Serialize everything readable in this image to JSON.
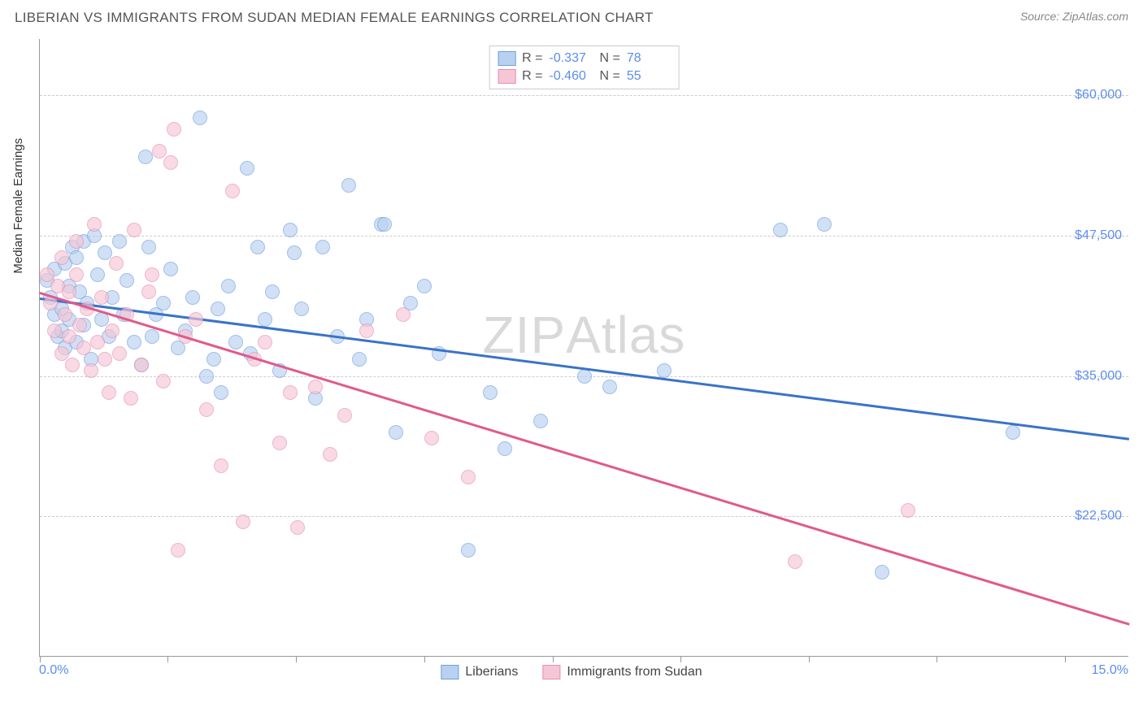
{
  "title": "LIBERIAN VS IMMIGRANTS FROM SUDAN MEDIAN FEMALE EARNINGS CORRELATION CHART",
  "source": "Source: ZipAtlas.com",
  "watermark_a": "ZIP",
  "watermark_b": "Atlas",
  "y_axis_title": "Median Female Earnings",
  "chart": {
    "type": "scatter",
    "xlim": [
      0,
      15
    ],
    "ylim": [
      10000,
      65000
    ],
    "x_left_label": "0.0%",
    "x_right_label": "15.0%",
    "x_ticks": [
      0,
      1.76,
      3.53,
      5.29,
      7.06,
      8.82,
      10.59,
      12.35,
      14.12
    ],
    "y_ticks": [
      {
        "v": 22500,
        "label": "$22,500"
      },
      {
        "v": 35000,
        "label": "$35,000"
      },
      {
        "v": 47500,
        "label": "$47,500"
      },
      {
        "v": 60000,
        "label": "$60,000"
      }
    ],
    "grid_color": "#cccccc",
    "background_color": "#ffffff",
    "series": [
      {
        "name": "Liberians",
        "fill": "#b9d1f0",
        "stroke": "#6b9fe0",
        "line_color": "#3973c9",
        "R": "-0.337",
        "N": "78",
        "trend": {
          "x1": 0,
          "y1": 42000,
          "x2": 15,
          "y2": 29500
        },
        "points": [
          [
            0.1,
            43500
          ],
          [
            0.15,
            42000
          ],
          [
            0.2,
            40500
          ],
          [
            0.2,
            44500
          ],
          [
            0.25,
            38500
          ],
          [
            0.3,
            41000
          ],
          [
            0.3,
            39000
          ],
          [
            0.35,
            45000
          ],
          [
            0.35,
            37500
          ],
          [
            0.4,
            43000
          ],
          [
            0.4,
            40000
          ],
          [
            0.45,
            46500
          ],
          [
            0.5,
            38000
          ],
          [
            0.5,
            45500
          ],
          [
            0.55,
            42500
          ],
          [
            0.6,
            47000
          ],
          [
            0.6,
            39500
          ],
          [
            0.65,
            41500
          ],
          [
            0.7,
            36500
          ],
          [
            0.75,
            47500
          ],
          [
            0.8,
            44000
          ],
          [
            0.85,
            40000
          ],
          [
            0.9,
            46000
          ],
          [
            0.95,
            38500
          ],
          [
            1.0,
            42000
          ],
          [
            1.1,
            47000
          ],
          [
            1.15,
            40500
          ],
          [
            1.2,
            43500
          ],
          [
            1.3,
            38000
          ],
          [
            1.4,
            36000
          ],
          [
            1.45,
            54500
          ],
          [
            1.5,
            46500
          ],
          [
            1.55,
            38500
          ],
          [
            1.6,
            40500
          ],
          [
            1.7,
            41500
          ],
          [
            1.8,
            44500
          ],
          [
            1.9,
            37500
          ],
          [
            2.0,
            39000
          ],
          [
            2.1,
            42000
          ],
          [
            2.2,
            58000
          ],
          [
            2.3,
            35000
          ],
          [
            2.4,
            36500
          ],
          [
            2.45,
            41000
          ],
          [
            2.5,
            33500
          ],
          [
            2.6,
            43000
          ],
          [
            2.7,
            38000
          ],
          [
            2.85,
            53500
          ],
          [
            2.9,
            37000
          ],
          [
            3.0,
            46500
          ],
          [
            3.1,
            40000
          ],
          [
            3.2,
            42500
          ],
          [
            3.3,
            35500
          ],
          [
            3.45,
            48000
          ],
          [
            3.5,
            46000
          ],
          [
            3.6,
            41000
          ],
          [
            3.8,
            33000
          ],
          [
            3.9,
            46500
          ],
          [
            4.1,
            38500
          ],
          [
            4.25,
            52000
          ],
          [
            4.4,
            36500
          ],
          [
            4.5,
            40000
          ],
          [
            4.7,
            48500
          ],
          [
            4.75,
            48500
          ],
          [
            4.9,
            30000
          ],
          [
            5.1,
            41500
          ],
          [
            5.3,
            43000
          ],
          [
            5.5,
            37000
          ],
          [
            5.9,
            19500
          ],
          [
            6.2,
            33500
          ],
          [
            6.4,
            28500
          ],
          [
            6.9,
            31000
          ],
          [
            7.5,
            35000
          ],
          [
            7.85,
            34000
          ],
          [
            8.6,
            35500
          ],
          [
            10.2,
            48000
          ],
          [
            10.8,
            48500
          ],
          [
            11.6,
            17500
          ],
          [
            13.4,
            30000
          ]
        ]
      },
      {
        "name": "Immigrants from Sudan",
        "fill": "#f5c6d6",
        "stroke": "#e88fb0",
        "line_color": "#e05a8a",
        "R": "-0.460",
        "N": "55",
        "trend": {
          "x1": 0,
          "y1": 42500,
          "x2": 15,
          "y2": 13000
        },
        "points": [
          [
            0.1,
            44000
          ],
          [
            0.15,
            41500
          ],
          [
            0.2,
            39000
          ],
          [
            0.25,
            43000
          ],
          [
            0.3,
            37000
          ],
          [
            0.3,
            45500
          ],
          [
            0.35,
            40500
          ],
          [
            0.4,
            38500
          ],
          [
            0.4,
            42500
          ],
          [
            0.45,
            36000
          ],
          [
            0.5,
            44000
          ],
          [
            0.5,
            47000
          ],
          [
            0.55,
            39500
          ],
          [
            0.6,
            37500
          ],
          [
            0.65,
            41000
          ],
          [
            0.7,
            35500
          ],
          [
            0.75,
            48500
          ],
          [
            0.8,
            38000
          ],
          [
            0.85,
            42000
          ],
          [
            0.9,
            36500
          ],
          [
            0.95,
            33500
          ],
          [
            1.0,
            39000
          ],
          [
            1.05,
            45000
          ],
          [
            1.1,
            37000
          ],
          [
            1.2,
            40500
          ],
          [
            1.25,
            33000
          ],
          [
            1.3,
            48000
          ],
          [
            1.4,
            36000
          ],
          [
            1.5,
            42500
          ],
          [
            1.55,
            44000
          ],
          [
            1.65,
            55000
          ],
          [
            1.7,
            34500
          ],
          [
            1.8,
            54000
          ],
          [
            1.85,
            57000
          ],
          [
            1.9,
            19500
          ],
          [
            2.0,
            38500
          ],
          [
            2.15,
            40000
          ],
          [
            2.3,
            32000
          ],
          [
            2.5,
            27000
          ],
          [
            2.65,
            51500
          ],
          [
            2.8,
            22000
          ],
          [
            2.95,
            36500
          ],
          [
            3.1,
            38000
          ],
          [
            3.3,
            29000
          ],
          [
            3.45,
            33500
          ],
          [
            3.55,
            21500
          ],
          [
            3.8,
            34000
          ],
          [
            4.0,
            28000
          ],
          [
            4.2,
            31500
          ],
          [
            4.5,
            39000
          ],
          [
            5.0,
            40500
          ],
          [
            5.4,
            29500
          ],
          [
            5.9,
            26000
          ],
          [
            10.4,
            18500
          ],
          [
            11.95,
            23000
          ]
        ]
      }
    ]
  }
}
